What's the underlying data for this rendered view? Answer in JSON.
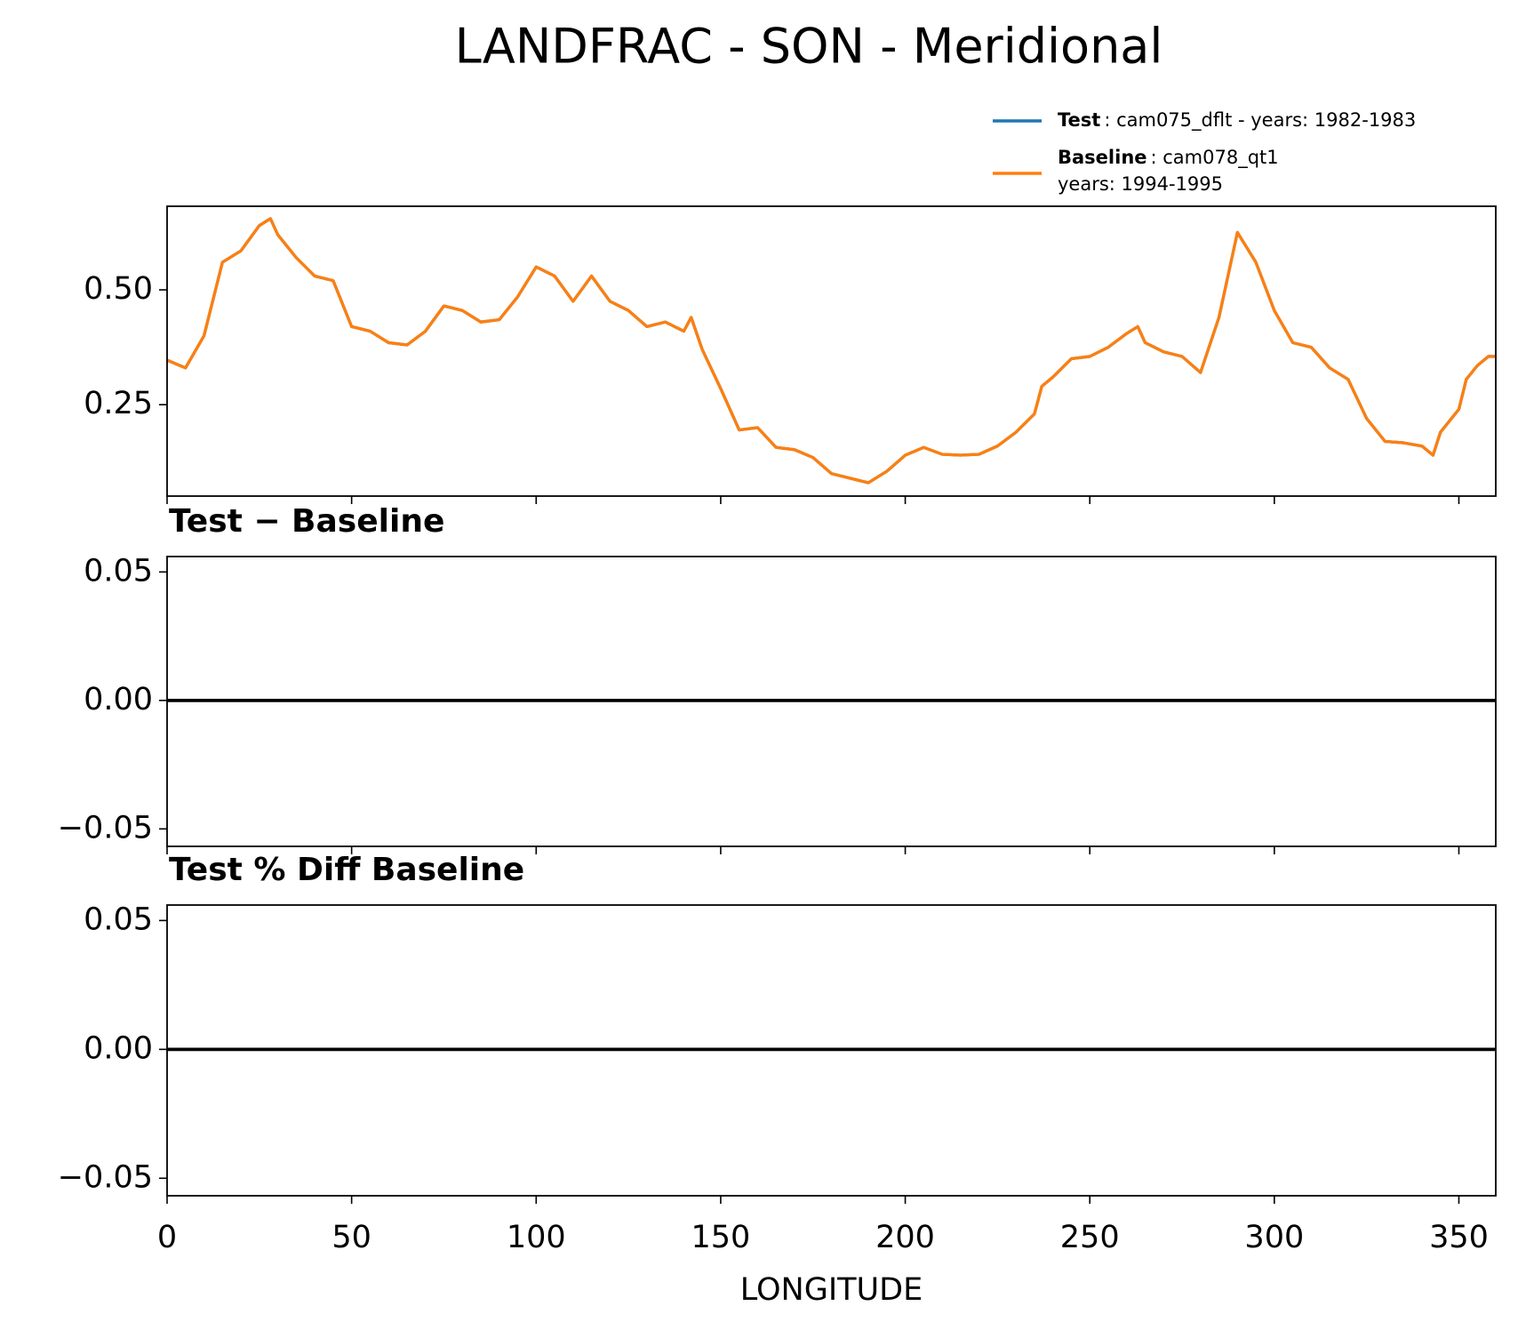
{
  "chart_data": [
    {
      "type": "line",
      "title": "LANDFRAC - SON - Meridional",
      "x": [
        0,
        5,
        10,
        15,
        20,
        25,
        28,
        30,
        35,
        40,
        45,
        50,
        55,
        60,
        65,
        70,
        75,
        80,
        85,
        90,
        95,
        100,
        105,
        110,
        115,
        120,
        125,
        130,
        135,
        140,
        142,
        145,
        150,
        155,
        160,
        165,
        170,
        175,
        180,
        185,
        190,
        195,
        200,
        205,
        210,
        215,
        220,
        225,
        230,
        235,
        237,
        240,
        245,
        250,
        255,
        260,
        263,
        265,
        270,
        275,
        280,
        285,
        290,
        295,
        300,
        305,
        310,
        315,
        320,
        325,
        330,
        335,
        340,
        343,
        345,
        350,
        352,
        355,
        358,
        360
      ],
      "series": [
        {
          "name": "Test",
          "label_lines": [
            ": cam075_dflt - years: 1982-1983"
          ],
          "color": "#1f77b4",
          "values": [
            0.347,
            0.33,
            0.4,
            0.56,
            0.585,
            0.64,
            0.655,
            0.62,
            0.57,
            0.53,
            0.52,
            0.42,
            0.41,
            0.385,
            0.38,
            0.41,
            0.465,
            0.455,
            0.43,
            0.435,
            0.485,
            0.55,
            0.53,
            0.475,
            0.53,
            0.475,
            0.455,
            0.42,
            0.43,
            0.41,
            0.44,
            0.37,
            0.285,
            0.195,
            0.2,
            0.157,
            0.152,
            0.135,
            0.1,
            0.09,
            0.08,
            0.105,
            0.14,
            0.157,
            0.142,
            0.14,
            0.142,
            0.16,
            0.19,
            0.23,
            0.29,
            0.31,
            0.35,
            0.355,
            0.375,
            0.405,
            0.42,
            0.385,
            0.365,
            0.355,
            0.32,
            0.44,
            0.625,
            0.56,
            0.455,
            0.385,
            0.375,
            0.33,
            0.305,
            0.22,
            0.17,
            0.167,
            0.16,
            0.14,
            0.19,
            0.24,
            0.305,
            0.335,
            0.355,
            0.355
          ]
        },
        {
          "name": "Baseline",
          "label_lines": [
            ": cam078_qt1",
            "years: 1994-1995"
          ],
          "color": "#ff7f0e",
          "values": [
            0.347,
            0.33,
            0.4,
            0.56,
            0.585,
            0.64,
            0.655,
            0.62,
            0.57,
            0.53,
            0.52,
            0.42,
            0.41,
            0.385,
            0.38,
            0.41,
            0.465,
            0.455,
            0.43,
            0.435,
            0.485,
            0.55,
            0.53,
            0.475,
            0.53,
            0.475,
            0.455,
            0.42,
            0.43,
            0.41,
            0.44,
            0.37,
            0.285,
            0.195,
            0.2,
            0.157,
            0.152,
            0.135,
            0.1,
            0.09,
            0.08,
            0.105,
            0.14,
            0.157,
            0.142,
            0.14,
            0.142,
            0.16,
            0.19,
            0.23,
            0.29,
            0.31,
            0.35,
            0.355,
            0.375,
            0.405,
            0.42,
            0.385,
            0.365,
            0.355,
            0.32,
            0.44,
            0.625,
            0.56,
            0.455,
            0.385,
            0.375,
            0.33,
            0.305,
            0.22,
            0.17,
            0.167,
            0.16,
            0.14,
            0.19,
            0.24,
            0.305,
            0.335,
            0.355,
            0.355
          ]
        }
      ],
      "xlim": [
        0,
        360
      ],
      "xticks": [
        0,
        50,
        100,
        150,
        200,
        250,
        300,
        350
      ],
      "ylim": [
        0.051,
        0.682
      ],
      "yticks": [
        0.25,
        {
          "value": 0.5,
          "label": "0.50"
        }
      ]
    },
    {
      "type": "line",
      "title": "Test − Baseline",
      "x": [
        0,
        360
      ],
      "series": [
        {
          "color": "#000000",
          "values": [
            0,
            0
          ]
        }
      ],
      "xlim": [
        0,
        360
      ],
      "xticks": [
        0,
        50,
        100,
        150,
        200,
        250,
        300,
        350
      ],
      "ylim": [
        -0.0568,
        0.056
      ],
      "yticks": [
        {
          "value": -0.05,
          "label": "−0.05"
        },
        {
          "value": 0,
          "label": "0.00"
        },
        0.05
      ]
    },
    {
      "type": "line",
      "title": "Test % Diff Baseline",
      "xlabel": "LONGITUDE",
      "x": [
        0,
        360
      ],
      "series": [
        {
          "color": "#000000",
          "values": [
            0,
            0
          ]
        }
      ],
      "xlim": [
        0,
        360
      ],
      "xticks": [
        0,
        50,
        100,
        150,
        200,
        250,
        300,
        350
      ],
      "ylim": [
        -0.0568,
        0.056
      ],
      "yticks": [
        {
          "value": -0.05,
          "label": "−0.05"
        },
        {
          "value": 0,
          "label": "0.00"
        },
        0.05
      ]
    }
  ]
}
